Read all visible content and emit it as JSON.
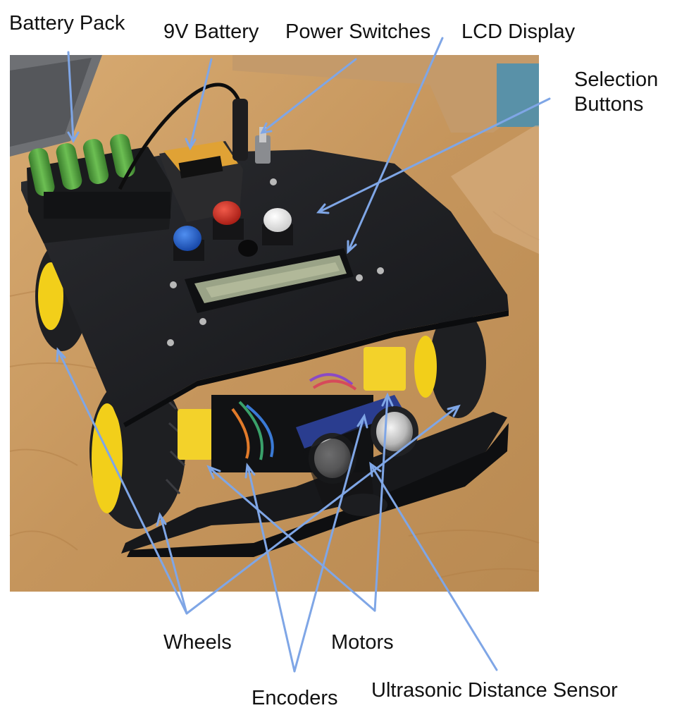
{
  "labels": {
    "battery_pack": "Battery Pack",
    "nine_v_battery": "9V Battery",
    "power_switches": "Power Switches",
    "lcd_display": "LCD Display",
    "selection_buttons": "Selection Buttons",
    "wheels": "Wheels",
    "motors": "Motors",
    "encoders": "Encoders",
    "ultrasonic_sensor": "Ultrasonic Distance Sensor"
  },
  "colors": {
    "arrow": "#7fa6e6",
    "robot_plate": "#1b1c1f",
    "wheel_tire": "#1e1f22",
    "wheel_hub": "#f2cf1a",
    "floor": "#c99a63",
    "battery_green": "#4f9a3c",
    "button_blue": "#1f5fd1",
    "button_red": "#d42a1f",
    "button_white": "#f1f1f1",
    "lcd_screen": "#9aa387",
    "sensor_board": "#2a3d8f"
  }
}
